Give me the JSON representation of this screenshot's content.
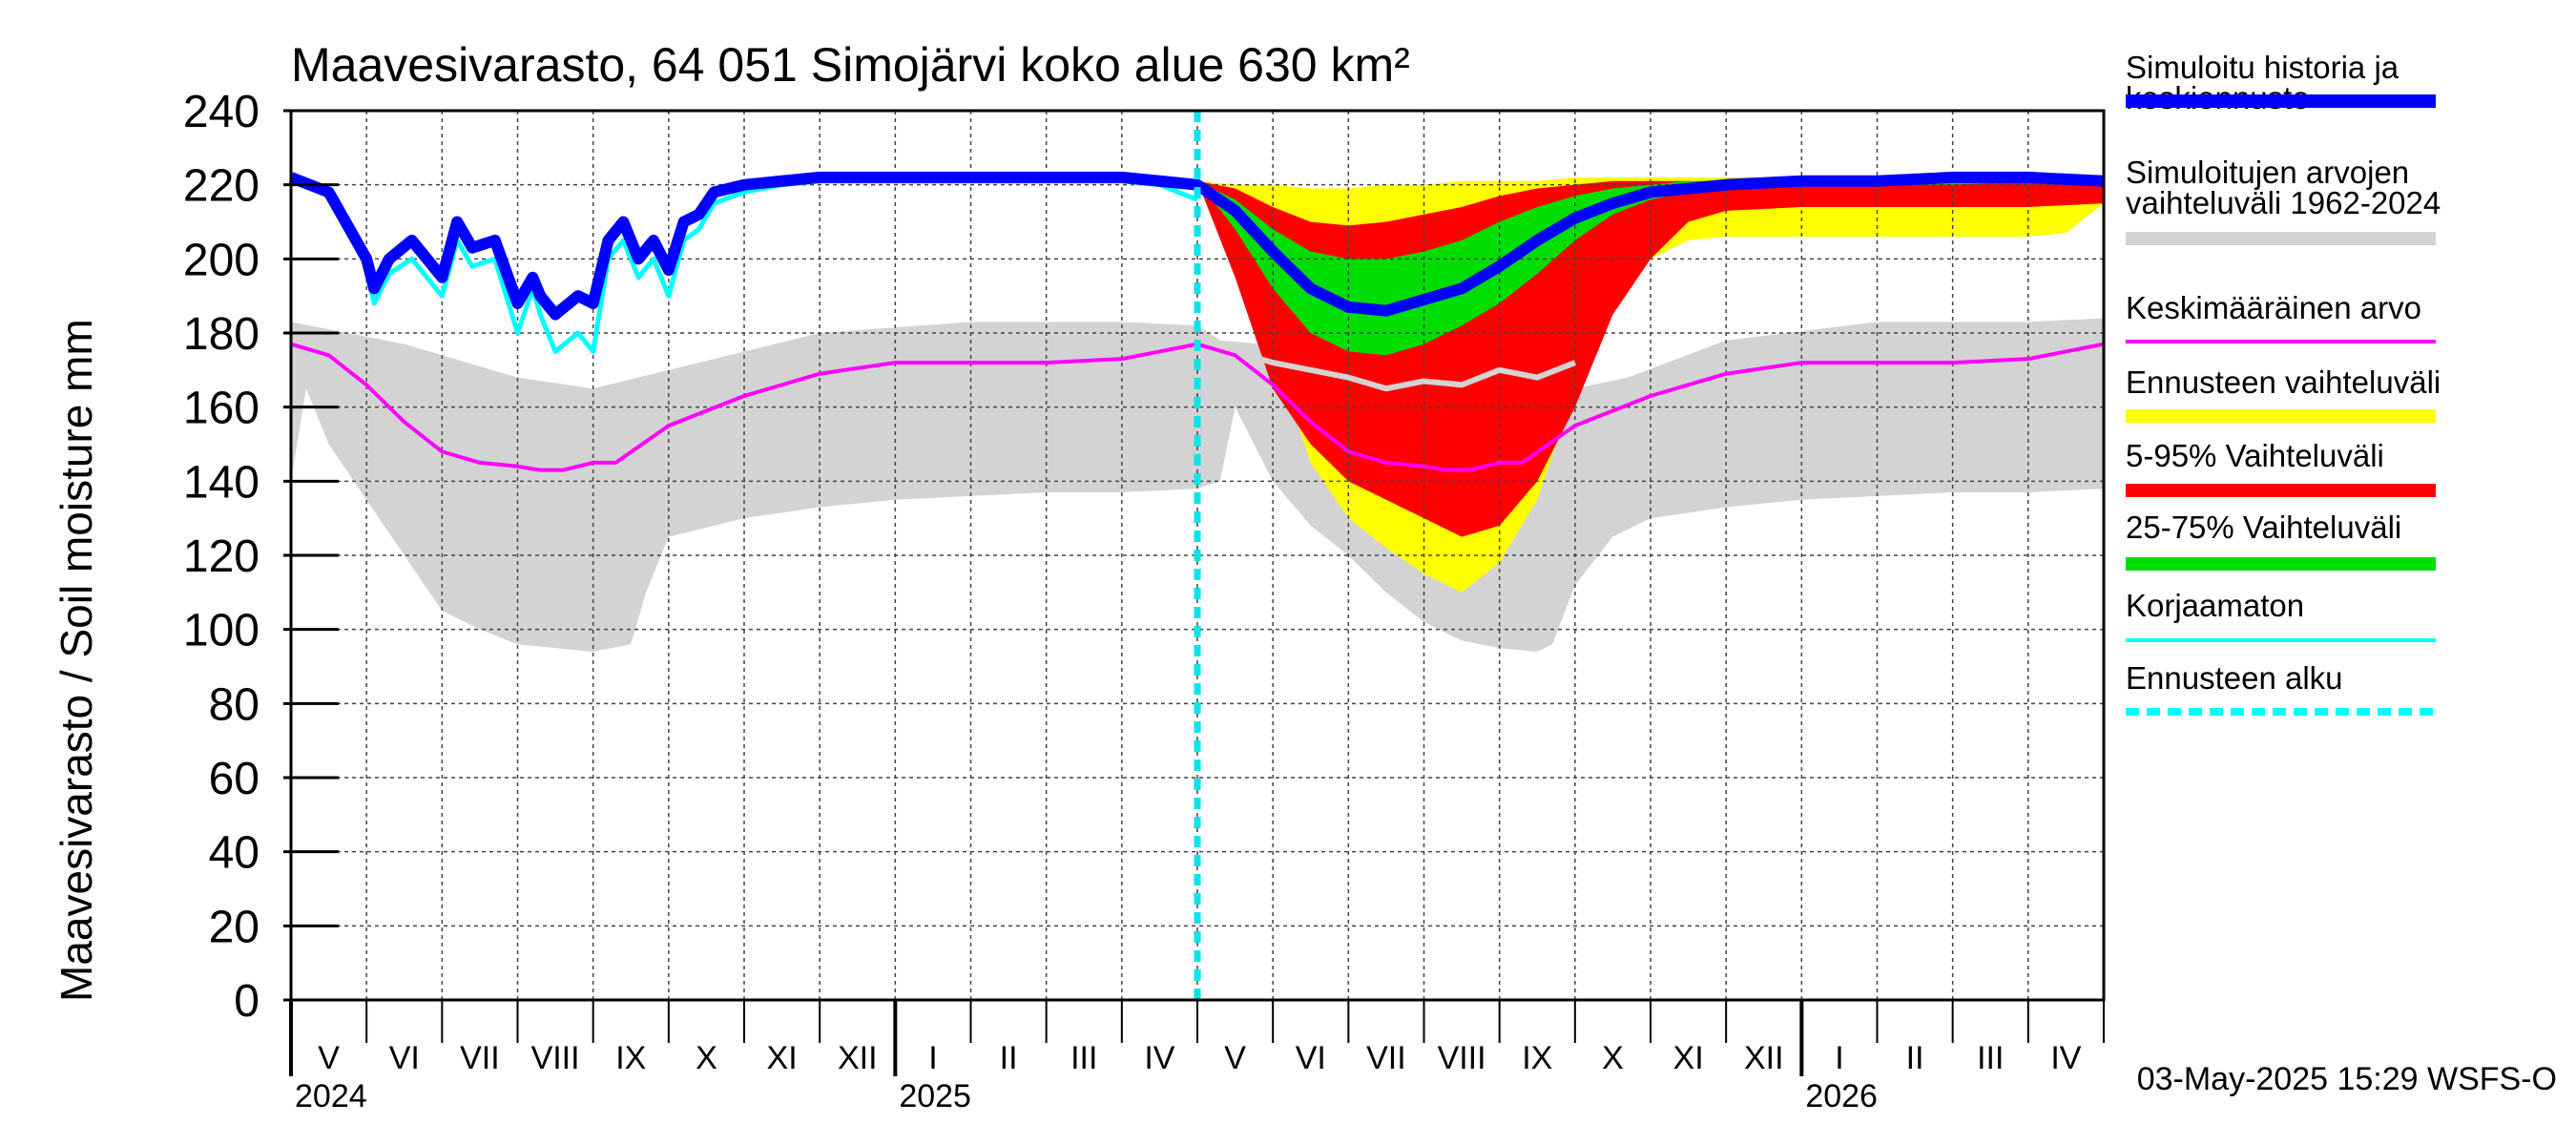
{
  "chart_data": {
    "type": "area",
    "title": "Maavesivarasto, 64 051 Simojärvi koko alue 630 km²",
    "ylabel": "Maavesivarasto / Soil moisture   mm",
    "xlabel": "",
    "ylim": [
      0,
      240
    ],
    "yticks": [
      0,
      20,
      40,
      60,
      80,
      100,
      120,
      140,
      160,
      180,
      200,
      220,
      240
    ],
    "grid": true,
    "legend_position": "right",
    "month_labels": [
      "V",
      "VI",
      "VII",
      "VIII",
      "IX",
      "X",
      "XI",
      "XII",
      "I",
      "II",
      "III",
      "IV",
      "V",
      "VI",
      "VII",
      "VIII",
      "IX",
      "X",
      "XI",
      "XII",
      "I",
      "II",
      "III",
      "IV"
    ],
    "year_labels": [
      {
        "label": "2024",
        "month_index": 0
      },
      {
        "label": "2025",
        "month_index": 8
      },
      {
        "label": "2026",
        "month_index": 20
      }
    ],
    "forecast_start_month_index": 12,
    "x_unit": "months since 1 May 2024",
    "series": [
      {
        "name": "Simuloitujen arvojen vaihteluväli 1962-2024 (upper)",
        "color": "#d3d3d3",
        "x": [
          0,
          1.5,
          3,
          4,
          5,
          7,
          9,
          11,
          12,
          12.3,
          14,
          16,
          17,
          17.7,
          19,
          21,
          23,
          24
        ],
        "values": [
          183,
          177,
          168,
          165,
          170,
          180,
          183,
          183,
          182,
          178,
          175,
          170,
          165,
          168,
          178,
          183,
          183,
          184
        ]
      },
      {
        "name": "Simuloitujen arvojen vaihteluväli 1962-2024 (lower)",
        "color": "#d3d3d3",
        "x": [
          0,
          0.2,
          0.5,
          1,
          1.5,
          2,
          2.5,
          3,
          3.5,
          4,
          4.5,
          4.7,
          5,
          6,
          7,
          8,
          9,
          10,
          11,
          12,
          12.3,
          12.5,
          13,
          13.5,
          14,
          14.5,
          15,
          15.5,
          16,
          16.5,
          16.7,
          17,
          17.5,
          18,
          19,
          20,
          21,
          22,
          23,
          24
        ],
        "values": [
          140,
          165,
          150,
          135,
          120,
          105,
          100,
          96,
          95,
          94,
          96,
          110,
          125,
          130,
          133,
          135,
          136,
          137,
          137,
          138,
          140,
          160,
          140,
          128,
          120,
          110,
          102,
          97,
          95,
          94,
          96,
          112,
          125,
          130,
          133,
          135,
          136,
          137,
          137,
          138
        ]
      },
      {
        "name": "Ennusteen vaihteluväli",
        "color": "#ffff00",
        "x": [
          12,
          12.5,
          13,
          13.5,
          14,
          14.5,
          15,
          15.5,
          16,
          16.5,
          17,
          17.5,
          18,
          18.5,
          19,
          20,
          21,
          22,
          23,
          23.5,
          24
        ],
        "upper": [
          221,
          220,
          220,
          219,
          219,
          220,
          220,
          221,
          221,
          221,
          222,
          222,
          222,
          222,
          222,
          222,
          222,
          222,
          222,
          222,
          222
        ],
        "lower": [
          221,
          205,
          175,
          145,
          130,
          122,
          115,
          110,
          118,
          135,
          165,
          185,
          200,
          205,
          206,
          206,
          206,
          206,
          206,
          207,
          215
        ]
      },
      {
        "name": "5-95% Vaihteluväli",
        "color": "#ff0000",
        "x": [
          12,
          12.5,
          13,
          13.5,
          14,
          14.5,
          15,
          15.5,
          16,
          16.5,
          17,
          17.5,
          18,
          18.5,
          19,
          20,
          21,
          22,
          23,
          24
        ],
        "upper": [
          221,
          219,
          214,
          210,
          209,
          210,
          212,
          214,
          217,
          219,
          220,
          221,
          221,
          221,
          221,
          221,
          221,
          222,
          222,
          222
        ],
        "lower": [
          221,
          195,
          165,
          150,
          140,
          135,
          130,
          125,
          128,
          140,
          160,
          185,
          200,
          210,
          213,
          214,
          214,
          214,
          214,
          215
        ]
      },
      {
        "name": "25-75% Vaihteluväli",
        "color": "#00dd00",
        "x": [
          12,
          12.5,
          13,
          13.5,
          14,
          14.5,
          15,
          15.5,
          16,
          16.5,
          17,
          17.5,
          18,
          18.5,
          19,
          20,
          21,
          22,
          23,
          24
        ],
        "upper": [
          221,
          216,
          208,
          202,
          200,
          200,
          202,
          205,
          210,
          214,
          217,
          219,
          220,
          221,
          221,
          221,
          222,
          222,
          222,
          222
        ],
        "lower": [
          221,
          208,
          192,
          180,
          175,
          174,
          177,
          182,
          188,
          196,
          205,
          212,
          216,
          218,
          219,
          220,
          220,
          220,
          221,
          221
        ]
      },
      {
        "name": "Keskimääräinen arvo",
        "color": "#ff00ff",
        "x": [
          0,
          0.5,
          1,
          1.5,
          2,
          2.5,
          3,
          3.3,
          3.6,
          4,
          4.3,
          5,
          6,
          7,
          8,
          9,
          10,
          11,
          11.5,
          12,
          12.5,
          13,
          13.5,
          14,
          14.5,
          15,
          15.3,
          15.6,
          16,
          16.3,
          17,
          18,
          19,
          20,
          21,
          22,
          23,
          23.5,
          24
        ],
        "values": [
          177,
          174,
          166,
          156,
          148,
          145,
          144,
          143,
          143,
          145,
          145,
          155,
          163,
          169,
          172,
          172,
          172,
          173,
          175,
          177,
          174,
          166,
          156,
          148,
          145,
          144,
          143,
          143,
          145,
          145,
          155,
          163,
          169,
          172,
          172,
          172,
          173,
          175,
          177
        ]
      },
      {
        "name": "Korjaamaton",
        "color": "#00ffff",
        "x": [
          0,
          0.5,
          1,
          1.1,
          1.3,
          1.6,
          2,
          2.2,
          2.4,
          2.7,
          3,
          3.2,
          3.3,
          3.5,
          3.8,
          4,
          4.2,
          4.4,
          4.6,
          4.8,
          5,
          5.2,
          5.4,
          5.6,
          6,
          6.5,
          7,
          8,
          9,
          10,
          11,
          11.5,
          12
        ],
        "values": [
          222,
          217,
          198,
          188,
          196,
          200,
          190,
          205,
          198,
          200,
          180,
          192,
          185,
          175,
          180,
          175,
          200,
          205,
          195,
          200,
          190,
          205,
          208,
          215,
          218,
          220,
          221,
          221,
          221,
          221,
          221,
          220,
          216
        ]
      },
      {
        "name": "Simuloitu historia ja keskiennuste",
        "color": "#0000ff",
        "x": [
          0,
          0.5,
          1,
          1.1,
          1.3,
          1.6,
          2,
          2.2,
          2.4,
          2.7,
          3,
          3.2,
          3.3,
          3.5,
          3.8,
          4,
          4.2,
          4.4,
          4.6,
          4.8,
          5,
          5.2,
          5.4,
          5.6,
          6,
          6.5,
          7,
          8,
          9,
          10,
          11,
          11.5,
          12,
          12.5,
          13,
          13.5,
          14,
          14.5,
          15,
          15.5,
          16,
          16.5,
          17,
          17.5,
          18,
          19,
          20,
          21,
          22,
          23,
          24
        ],
        "values": [
          222,
          218,
          200,
          192,
          200,
          205,
          195,
          210,
          203,
          205,
          188,
          195,
          190,
          185,
          190,
          188,
          205,
          210,
          200,
          205,
          197,
          210,
          212,
          218,
          220,
          221,
          222,
          222,
          222,
          222,
          222,
          221,
          220,
          213,
          202,
          192,
          187,
          186,
          189,
          192,
          198,
          205,
          211,
          215,
          218,
          220,
          221,
          221,
          222,
          222,
          221
        ]
      },
      {
        "name": "Simulated median (grey)",
        "color": "#d3d3d3",
        "x": [
          12.5,
          13,
          13.5,
          14,
          14.5,
          15,
          15.5,
          16,
          16.5,
          17
        ],
        "values": [
          175,
          172,
          170,
          168,
          165,
          167,
          166,
          170,
          168,
          172
        ]
      }
    ],
    "legend": [
      {
        "label": "Simuloitu historia ja keskiennuste",
        "color": "#0000ff",
        "style": "thick"
      },
      {
        "label": "Simuloitujen arvojen vaihteluväli 1962-2024",
        "color": "#d3d3d3",
        "style": "thick"
      },
      {
        "label": "Keskimääräinen arvo",
        "color": "#ff00ff",
        "style": "thin"
      },
      {
        "label": "Ennusteen vaihteluväli",
        "color": "#ffff00",
        "style": "thick"
      },
      {
        "label": "5-95% Vaihteluväli",
        "color": "#ff0000",
        "style": "thick"
      },
      {
        "label": "25-75% Vaihteluväli",
        "color": "#00dd00",
        "style": "thick"
      },
      {
        "label": "Korjaamaton",
        "color": "#00ffff",
        "style": "thin"
      },
      {
        "label": "Ennusteen alku",
        "color": "#00ffff",
        "style": "dashed"
      }
    ],
    "footer": "03-May-2025 15:29 WSFS-O"
  }
}
